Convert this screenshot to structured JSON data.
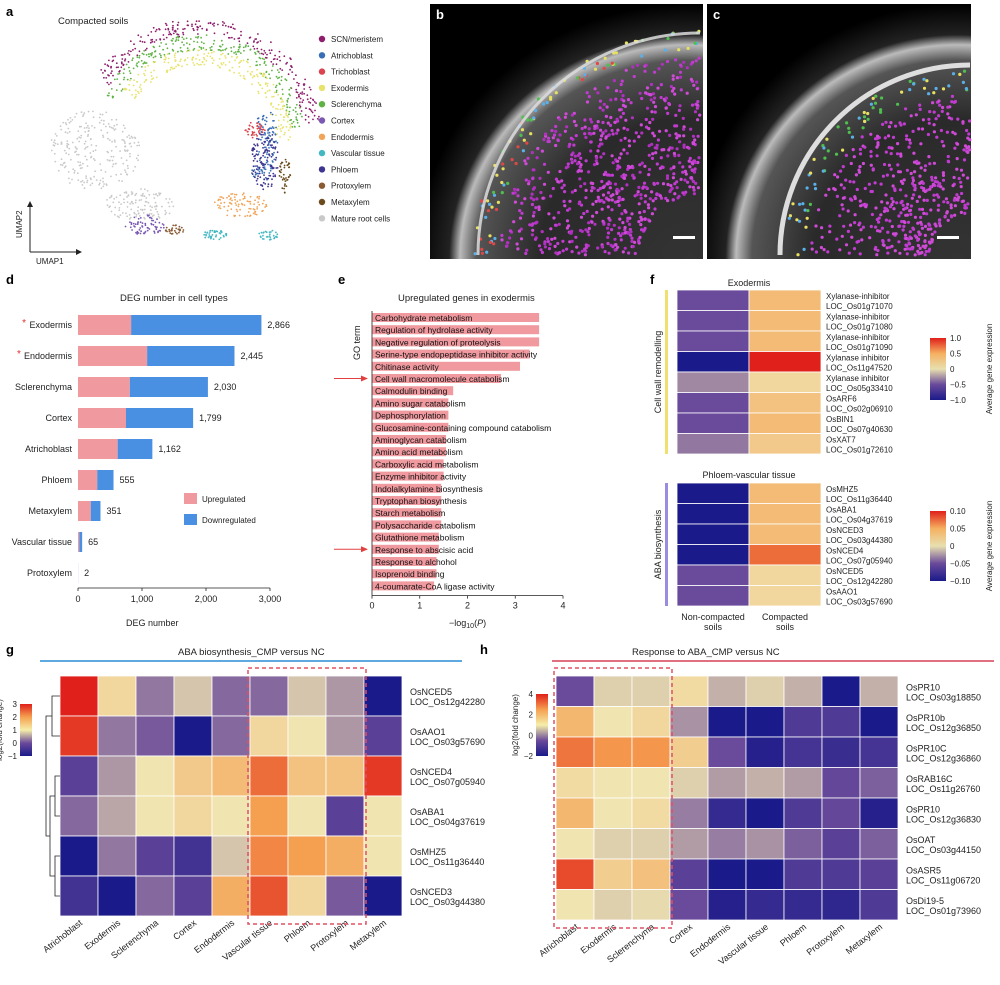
{
  "colors": {
    "upregulated": "#f09aa0",
    "downregulated": "#4a90e2",
    "panel_g_line": "#5fa8e0",
    "panel_h_line": "#e07080",
    "dashed_box": "#e05060"
  },
  "panel_labels": [
    "a",
    "b",
    "c",
    "d",
    "e",
    "f",
    "g",
    "h"
  ],
  "chart_data": [
    {
      "id": "a",
      "type": "scatter",
      "title": "Compacted soils",
      "xlabel": "UMAP1",
      "ylabel": "UMAP2",
      "legend": [
        {
          "label": "SCN/meristem",
          "color": "#8e1d6c"
        },
        {
          "label": "Atrichoblast",
          "color": "#3a6fb6"
        },
        {
          "label": "Trichoblast",
          "color": "#d9444e"
        },
        {
          "label": "Exodermis",
          "color": "#e8e36a"
        },
        {
          "label": "Sclerenchyma",
          "color": "#5fb344"
        },
        {
          "label": "Cortex",
          "color": "#7a58b3"
        },
        {
          "label": "Endodermis",
          "color": "#f0a55a"
        },
        {
          "label": "Vascular tissue",
          "color": "#43b8c3"
        },
        {
          "label": "Phloem",
          "color": "#3e3590"
        },
        {
          "label": "Protoxylem",
          "color": "#8a5a32"
        },
        {
          "label": "Metaxylem",
          "color": "#6b4a1c"
        },
        {
          "label": "Mature root cells",
          "color": "#c9c9c9"
        }
      ]
    },
    {
      "id": "d",
      "type": "bar",
      "title": "DEG number in cell types",
      "xlabel": "DEG number",
      "xlim": [
        0,
        3000
      ],
      "xticks": [
        "0",
        "1,000",
        "2,000",
        "3,000"
      ],
      "categories": [
        "Exodermis",
        "Endodermis",
        "Sclerenchyma",
        "Cortex",
        "Atrichoblast",
        "Phloem",
        "Metaxylem",
        "Vascular tissue",
        "Protoxylem"
      ],
      "starred": [
        true,
        true,
        false,
        false,
        false,
        false,
        false,
        false,
        false
      ],
      "series": [
        {
          "name": "Upregulated",
          "values": [
            830,
            1080,
            810,
            750,
            620,
            300,
            200,
            20,
            1
          ]
        },
        {
          "name": "Downregulated",
          "values": [
            2036,
            1365,
            1220,
            1049,
            542,
            255,
            151,
            45,
            1
          ]
        }
      ],
      "totals": [
        "2,866",
        "2,445",
        "2,030",
        "1,799",
        "1,162",
        "555",
        "351",
        "65",
        "2"
      ]
    },
    {
      "id": "e",
      "type": "bar",
      "title": "Upregulated genes in exodermis",
      "ylabel": "GO term",
      "xlim": [
        0,
        4
      ],
      "xticks": [
        "0",
        "1",
        "2",
        "3",
        "4"
      ],
      "categories": [
        "Carbohydrate metabolism",
        "Regulation of hydrolase activity",
        "Negative regulation of proteolysis",
        "Serine-type endopeptidase inhibitor activity",
        "Chitinase activity",
        "Cell wall macromolecule catabolism",
        "Calmodulin binding",
        "Amino sugar catabolism",
        "Dephosphorylation",
        "Glucosamine-containing compound catabolism",
        "Aminoglycan catabolism",
        "Amino acid metabolism",
        "Carboxylic acid metabolism",
        "Enzyme inhibitor activity",
        "Indolalkylamine biosynthesis",
        "Tryptophan biosynthesis",
        "Starch metabolism",
        "Polysaccharide catabolism",
        "Glutathione metabolism",
        "Response to abscisic acid",
        "Response to alchohol",
        "Isoprenoid binding",
        "4-coumarate-CoA ligase activity"
      ],
      "values": [
        3.5,
        3.5,
        3.5,
        3.3,
        3.1,
        2.7,
        1.7,
        1.6,
        1.6,
        1.6,
        1.55,
        1.55,
        1.5,
        1.5,
        1.45,
        1.45,
        1.45,
        1.45,
        1.4,
        1.4,
        1.35,
        1.35,
        1.3
      ],
      "arrows_on": [
        "Cell wall macromolecule catabolism",
        "Response to abscisic acid"
      ]
    },
    {
      "id": "f",
      "type": "heatmap",
      "columns": [
        "Non-compacted\nsoils",
        "Compacted\nsoils"
      ],
      "groups": [
        {
          "title": "Exodermis",
          "side_label": "Cell wall remodelling",
          "rows": [
            "Xylanase-inhibitor\nLOC_Os01g71070",
            "Xylanase-inhibitor\nLOC_Os01g71080",
            "Xylanase-inhibitor\nLOC_Os01g71090",
            "Xylanase inhibitor\nLOC_Os11g47520",
            "Xylanase inhibitor\nLOC_Os05g33410",
            "OsARF6\nLOC_Os02g06910",
            "OsBIN1\nLOC_Os07g40630",
            "OsXAT7\nLOC_Os01g72610"
          ],
          "values": [
            [
              -0.5,
              0.3
            ],
            [
              -0.5,
              0.3
            ],
            [
              -0.5,
              0.3
            ],
            [
              -1.0,
              1.0
            ],
            [
              -0.3,
              0.1
            ],
            [
              -0.5,
              0.25
            ],
            [
              -0.5,
              0.3
            ],
            [
              -0.35,
              0.2
            ]
          ],
          "scale": {
            "label": "Average gene expression",
            "min": -1.0,
            "max": 1.0,
            "ticks": [
              "1.0",
              "0.5",
              "0",
              "−0.5",
              "−1.0"
            ]
          }
        },
        {
          "title": "Phloem-vascular tissue",
          "side_label": "ABA biosynthesis",
          "rows": [
            "OsMHZ5\nLOC_Os11g36440",
            "OsABA1\nLOC_Os04g37619",
            "OsNCED3\nLOC_Os03g44380",
            "OsNCED4\nLOC_Os07g05940",
            "OsNCED5\nLOC_Os12g42280",
            "OsAAO1\nLOC_Os03g57690"
          ],
          "values": [
            [
              -0.1,
              0.03
            ],
            [
              -0.1,
              0.03
            ],
            [
              -0.1,
              0.03
            ],
            [
              -0.1,
              0.07
            ],
            [
              -0.05,
              0.01
            ],
            [
              -0.05,
              0.01
            ]
          ],
          "scale": {
            "label": "Average gene expression",
            "min": -0.1,
            "max": 0.1,
            "ticks": [
              "0.10",
              "0.05",
              "0",
              "−0.05",
              "−0.10"
            ]
          }
        }
      ]
    },
    {
      "id": "g",
      "type": "heatmap",
      "title": "ABA biosynthesis_CMP versus NC",
      "columns": [
        "Atrichoblast",
        "Exodermis",
        "Sclerenchyma",
        "Cortex",
        "Endodermis",
        "Vascular tissue",
        "Phloem",
        "Protoxylem",
        "Metaxylem"
      ],
      "rows": [
        "OsNCED5\nLOC_Os12g42280",
        "OsAAO1\nLOC_Os03g57690",
        "OsNCED4\nLOC_Os07g05940",
        "OsABA1\nLOC_Os04g37619",
        "OsMHZ5\nLOC_Os11g36440",
        "OsNCED3\nLOC_Os03g44380"
      ],
      "values": [
        [
          3.0,
          1.2,
          0.3,
          0.8,
          0.2,
          0.2,
          0.8,
          0.5,
          -1.2
        ],
        [
          2.8,
          0.3,
          0.1,
          -1.0,
          0.2,
          1.2,
          1.0,
          0.5,
          -0.2
        ],
        [
          -0.2,
          0.5,
          1.0,
          1.4,
          1.6,
          2.4,
          1.5,
          1.5,
          2.8
        ],
        [
          0.2,
          0.6,
          1.0,
          1.2,
          1.0,
          2.0,
          1.0,
          -0.2,
          1.0
        ],
        [
          -1.0,
          0.3,
          -0.2,
          -0.5,
          0.8,
          2.2,
          2.0,
          1.8,
          1.0
        ],
        [
          -0.5,
          -1.2,
          0.2,
          -0.2,
          1.8,
          2.6,
          1.2,
          0.1,
          -1.3
        ]
      ],
      "highlight_columns": [
        "Vascular tissue",
        "Phloem",
        "Protoxylem"
      ],
      "scale": {
        "label": "log2(fold change)",
        "min": -1,
        "max": 3,
        "ticks": [
          "3",
          "2",
          "1",
          "0",
          "−1"
        ]
      }
    },
    {
      "id": "h",
      "type": "heatmap",
      "title": "Response to ABA_CMP versus NC",
      "columns": [
        "Atrichoblast",
        "Exodermis",
        "Sclerenchyma",
        "Cortex",
        "Endodermis",
        "Vascular tissue",
        "Phloem",
        "Protoxylem",
        "Metaxylem"
      ],
      "rows": [
        "OsPR10\nLOC_Os03g18850",
        "OsPR10b\nLOC_Os12g36850",
        "OsPR10C\nLOC_Os12g36860",
        "OsRAB16C\nLOC_Os11g26760",
        "OsPR10\nLOC_Os12g36830",
        "OsOAT\nLOC_Os03g44150",
        "OsASR5\nLOC_Os11g06720",
        "OsDi19-5\nLOC_Os01g73960"
      ],
      "values": [
        [
          -0.5,
          0.8,
          0.8,
          1.2,
          0.5,
          0.8,
          0.5,
          -2.5,
          0.5
        ],
        [
          2.0,
          1.0,
          1.3,
          0.2,
          -2.0,
          -2.0,
          -1.0,
          -1.0,
          -2.2
        ],
        [
          3.0,
          2.6,
          2.6,
          1.5,
          -0.5,
          -1.8,
          -1.2,
          -1.4,
          -1.2
        ],
        [
          1.2,
          1.0,
          1.0,
          0.8,
          0.3,
          0.5,
          0.3,
          -0.6,
          -0.3
        ],
        [
          2.0,
          1.0,
          1.2,
          0.0,
          -1.5,
          -2.2,
          -1.0,
          -0.6,
          -1.8
        ],
        [
          1.0,
          0.8,
          0.8,
          0.3,
          0.0,
          0.2,
          -0.3,
          -0.8,
          -0.3
        ],
        [
          3.5,
          1.5,
          1.8,
          -0.8,
          -2.0,
          -2.2,
          -1.0,
          -1.0,
          -0.8
        ],
        [
          1.0,
          0.8,
          0.9,
          -0.5,
          -1.8,
          -1.5,
          -1.5,
          -1.6,
          -1.0
        ]
      ],
      "highlight_columns": [
        "Atrichoblast",
        "Exodermis",
        "Sclerenchyma"
      ],
      "scale": {
        "label": "log2(fold change)",
        "min": -2,
        "max": 4,
        "ticks": [
          "4",
          "2",
          "0",
          "−2"
        ]
      }
    }
  ]
}
